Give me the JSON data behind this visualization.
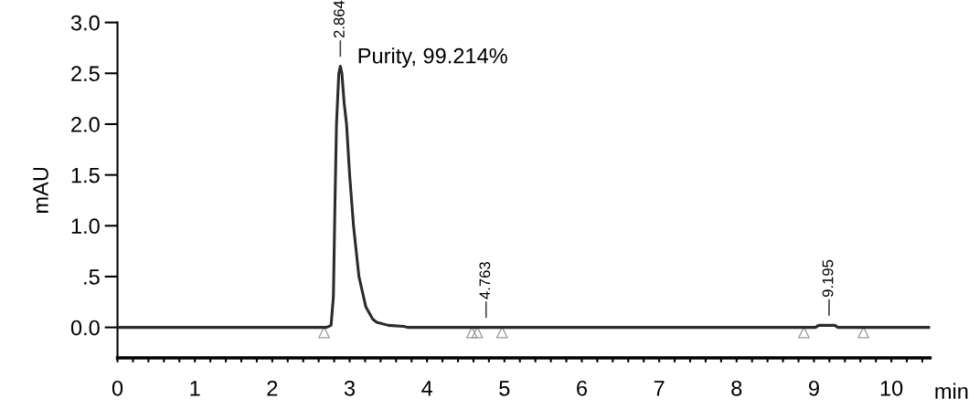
{
  "chart_data": {
    "type": "line",
    "xlabel": "min",
    "ylabel": "mAU",
    "series": [
      {
        "color": "#2b2b2b",
        "x": [
          0,
          2.7,
          2.76,
          2.79,
          2.81,
          2.83,
          2.86,
          2.88,
          2.9,
          2.93,
          2.96,
          3.0,
          3.05,
          3.12,
          3.21,
          3.3,
          3.35,
          3.5,
          3.7,
          3.75,
          9.02,
          9.06,
          9.12,
          9.2,
          9.27,
          9.31,
          10.5
        ],
        "values": [
          0,
          0,
          0.02,
          0.3,
          1.2,
          2.0,
          2.5,
          2.57,
          2.5,
          2.2,
          2.0,
          1.5,
          1.0,
          0.5,
          0.2,
          0.08,
          0.05,
          0.02,
          0.01,
          0,
          0,
          0.02,
          0.02,
          0.02,
          0.02,
          0,
          0
        ]
      },
      {
        "type": "scatter",
        "color": "#999999",
        "marker": "triangle",
        "x": [
          2.67,
          4.58,
          4.65,
          4.97,
          8.87,
          9.64
        ],
        "values": [
          -0.05,
          -0.05,
          -0.05,
          -0.05,
          -0.05,
          -0.05
        ]
      }
    ],
    "xlim": [
      0,
      10.5
    ],
    "ylim": [
      -0.3,
      3.0
    ],
    "xticks": [
      0,
      {
        "value": 0.2,
        "label": null
      },
      {
        "value": 0.4,
        "label": null
      },
      {
        "value": 0.6,
        "label": null
      },
      {
        "value": 0.8,
        "label": null
      },
      1,
      {
        "value": 1.2,
        "label": null
      },
      {
        "value": 1.4,
        "label": null
      },
      {
        "value": 1.6,
        "label": null
      },
      {
        "value": 1.8,
        "label": null
      },
      2,
      {
        "value": 2.2,
        "label": null
      },
      {
        "value": 2.4,
        "label": null
      },
      {
        "value": 2.6,
        "label": null
      },
      {
        "value": 2.8,
        "label": null
      },
      3,
      {
        "value": 3.2,
        "label": null
      },
      {
        "value": 3.4,
        "label": null
      },
      {
        "value": 3.6,
        "label": null
      },
      {
        "value": 3.8,
        "label": null
      },
      4,
      {
        "value": 4.2,
        "label": null
      },
      {
        "value": 4.4,
        "label": null
      },
      {
        "value": 4.6,
        "label": null
      },
      {
        "value": 4.8,
        "label": null
      },
      5,
      {
        "value": 5.2,
        "label": null
      },
      {
        "value": 5.4,
        "label": null
      },
      {
        "value": 5.6,
        "label": null
      },
      {
        "value": 5.8,
        "label": null
      },
      6,
      {
        "value": 6.2,
        "label": null
      },
      {
        "value": 6.4,
        "label": null
      },
      {
        "value": 6.6,
        "label": null
      },
      {
        "value": 6.8,
        "label": null
      },
      7,
      {
        "value": 7.2,
        "label": null
      },
      {
        "value": 7.4,
        "label": null
      },
      {
        "value": 7.6,
        "label": null
      },
      {
        "value": 7.8,
        "label": null
      },
      8,
      {
        "value": 8.2,
        "label": null
      },
      {
        "value": 8.4,
        "label": null
      },
      {
        "value": 8.6,
        "label": null
      },
      {
        "value": 8.8,
        "label": null
      },
      9,
      {
        "value": 9.2,
        "label": null
      },
      {
        "value": 9.4,
        "label": null
      },
      {
        "value": 9.6,
        "label": null
      },
      {
        "value": 9.8,
        "label": null
      },
      10,
      {
        "value": 10.2,
        "label": null
      },
      {
        "value": 10.4,
        "label": null
      }
    ],
    "yticks": [
      {
        "value": 0,
        "label": "0.0"
      },
      {
        "value": 0.5,
        "label": ".5"
      },
      {
        "value": 1.0,
        "label": "1.0"
      },
      {
        "value": 1.5,
        "label": "1.5"
      },
      {
        "value": 2.0,
        "label": "2.0"
      },
      {
        "value": 2.5,
        "label": "2.5"
      },
      {
        "value": 3.0,
        "label": "3.0"
      }
    ],
    "grid": false,
    "legend": false,
    "annotations": [
      {
        "text": "2.864",
        "x": 2.88,
        "y": 2.57
      },
      {
        "text": "4.763",
        "x": 4.763,
        "y": 0
      },
      {
        "text": "9.195",
        "x": 9.195,
        "y": 0.02
      },
      "Purity, 99.214%"
    ]
  }
}
